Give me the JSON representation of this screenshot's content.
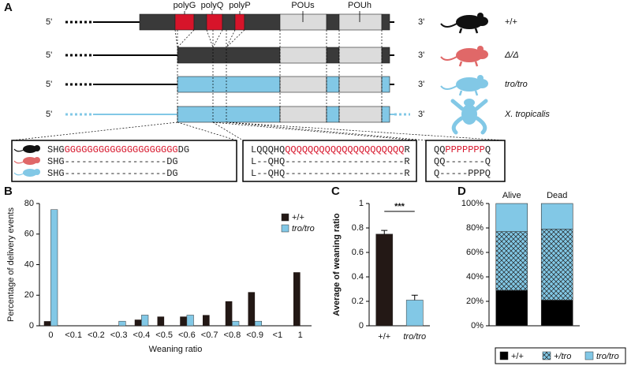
{
  "diagram": {
    "panel": "A",
    "domains": [
      "polyG",
      "polyQ",
      "polyP",
      "POUs",
      "POUh"
    ],
    "five_prime": "5'",
    "three_prime": "3'",
    "genotypes": [
      "+/+",
      "Δ/Δ",
      "tro/tro",
      "X. tropicalis"
    ],
    "alignments": [
      [
        [
          "SHG",
          "GGGGGGGGGGGGGGGGGGGG",
          "DG"
        ],
        [
          "SHG------------------DG"
        ],
        [
          "SHG------------------DG"
        ]
      ],
      [
        [
          "LQQQHQ",
          "QQQQQQQQQQQQQQQQQQQQQ",
          "R"
        ],
        [
          "L--QHQ---------------------R"
        ],
        [
          "L--QHQ---------------------R"
        ]
      ],
      [
        [
          "QQ",
          "PPPPPPP",
          "Q"
        ],
        [
          "QQ-------Q"
        ],
        [
          "Q-----PPPQ"
        ]
      ]
    ]
  },
  "chart_data": [
    {
      "type": "bar",
      "panel": "B",
      "x_label": "Weaning ratio",
      "y_label": "Percentage of delivery events",
      "categories": [
        "0",
        "<0.1",
        "<0.2",
        "<0.3",
        "<0.4",
        "<0.5",
        "<0.6",
        "<0.7",
        "<0.8",
        "<0.9",
        "<1",
        "1"
      ],
      "series": [
        {
          "name": "+/+",
          "color": "#231815",
          "values": [
            3,
            0,
            0,
            0,
            4,
            6,
            6,
            7,
            16,
            22,
            0,
            35
          ]
        },
        {
          "name": "tro/tro",
          "color": "#82c8e6",
          "values": [
            76,
            0,
            0,
            3,
            7,
            0,
            7,
            0,
            3,
            3,
            0,
            0
          ]
        }
      ],
      "ylim": [
        0,
        80
      ],
      "yticks": [
        0,
        20,
        40,
        60,
        80
      ],
      "legend": "upper right"
    },
    {
      "type": "errorbar",
      "panel": "C",
      "y_label": "Average of weaning ratio",
      "categories": [
        "+/+",
        "tro/tro"
      ],
      "values": [
        0.75,
        0.21
      ],
      "errors": [
        0.03,
        0.04
      ],
      "colors": [
        "#231815",
        "#82c8e6"
      ],
      "annotation": "***",
      "ylim": [
        0,
        1
      ],
      "yticks": [
        0,
        0.2,
        0.4,
        0.6,
        0.8,
        1
      ]
    },
    {
      "type": "stacked_bar",
      "panel": "D",
      "categories": [
        "Alive",
        "Dead"
      ],
      "series": [
        {
          "name": "+/+",
          "color": "#000000",
          "values": [
            29,
            21
          ]
        },
        {
          "name": "+/tro",
          "color": "#82c8e6",
          "pattern": "crosshatch",
          "values": [
            48,
            58
          ]
        },
        {
          "name": "tro/tro",
          "color": "#82c8e6",
          "values": [
            23,
            21
          ]
        }
      ],
      "ylim": [
        0,
        100
      ],
      "yticks": [
        {
          "value": 0,
          "label": "0%"
        },
        {
          "value": 20,
          "label": "20%"
        },
        {
          "value": 40,
          "label": "40%"
        },
        {
          "value": 60,
          "label": "60%"
        },
        {
          "value": 80,
          "label": "80%"
        },
        {
          "value": 100,
          "label": "100%"
        }
      ],
      "legend": "bottom"
    }
  ]
}
